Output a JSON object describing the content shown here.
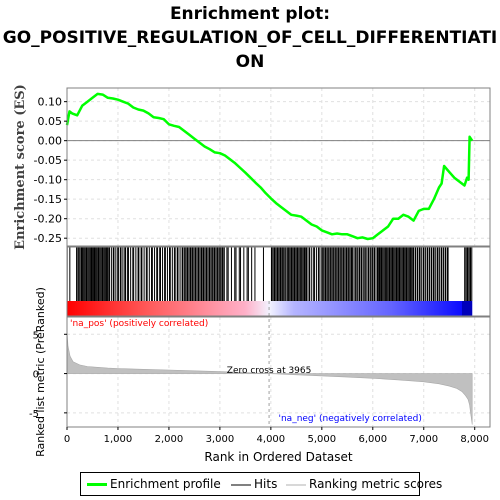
{
  "chart_data": {
    "type": "line",
    "title_lines": [
      "Enrichment plot:",
      "GO_POSITIVE_REGULATION_OF_CELL_DIFFERENTIATI",
      "ON"
    ],
    "ylabel_top": "Enrichment score (ES)",
    "ylabel_bottom": "Ranked list metric (PreRanked)",
    "xlabel": "Rank in Ordered Dataset",
    "x_ticks": [
      "0",
      "1,000",
      "2,000",
      "3,000",
      "4,000",
      "5,000",
      "6,000",
      "7,000",
      "8,000"
    ],
    "x_tick_values": [
      0,
      1000,
      2000,
      3000,
      4000,
      5000,
      6000,
      7000,
      8000
    ],
    "xlim": [
      0,
      8300
    ],
    "es_yticks": [
      "0.10",
      "0.05",
      "0.00",
      "-0.05",
      "-0.10",
      "-0.15",
      "-0.20",
      "-0.25"
    ],
    "es_ytick_values": [
      0.1,
      0.05,
      0.0,
      -0.05,
      -0.1,
      -0.15,
      -0.2,
      -0.25
    ],
    "es_ylim": [
      -0.27,
      0.135
    ],
    "metric_yticks": [
      "5",
      "0",
      "-5"
    ],
    "metric_ytick_values": [
      5,
      0,
      -5
    ],
    "metric_ylim": [
      -6.8,
      7.2
    ],
    "enrichment_profile": {
      "name": "Enrichment profile",
      "color": "#00ff00",
      "x": [
        0,
        50,
        100,
        200,
        300,
        400,
        500,
        600,
        700,
        800,
        900,
        1000,
        1100,
        1200,
        1300,
        1400,
        1500,
        1600,
        1700,
        1800,
        1900,
        2000,
        2100,
        2200,
        2300,
        2400,
        2500,
        2600,
        2700,
        2800,
        2900,
        3000,
        3100,
        3200,
        3300,
        3400,
        3500,
        3600,
        3700,
        3800,
        3900,
        4000,
        4100,
        4200,
        4300,
        4400,
        4500,
        4600,
        4700,
        4800,
        4900,
        5000,
        5100,
        5200,
        5300,
        5400,
        5500,
        5600,
        5700,
        5800,
        5900,
        6000,
        6100,
        6200,
        6300,
        6400,
        6500,
        6600,
        6700,
        6800,
        6900,
        7000,
        7100,
        7200,
        7300,
        7350,
        7400,
        7500,
        7600,
        7700,
        7800,
        7850,
        7880,
        7900,
        7950
      ],
      "y": [
        0.04,
        0.075,
        0.07,
        0.065,
        0.09,
        0.1,
        0.11,
        0.12,
        0.118,
        0.11,
        0.108,
        0.105,
        0.1,
        0.095,
        0.085,
        0.08,
        0.077,
        0.07,
        0.06,
        0.058,
        0.055,
        0.042,
        0.038,
        0.035,
        0.025,
        0.015,
        0.005,
        -0.005,
        -0.015,
        -0.022,
        -0.03,
        -0.032,
        -0.038,
        -0.048,
        -0.058,
        -0.07,
        -0.082,
        -0.095,
        -0.108,
        -0.12,
        -0.135,
        -0.148,
        -0.16,
        -0.17,
        -0.18,
        -0.19,
        -0.192,
        -0.195,
        -0.205,
        -0.215,
        -0.22,
        -0.23,
        -0.235,
        -0.24,
        -0.238,
        -0.24,
        -0.24,
        -0.245,
        -0.25,
        -0.248,
        -0.252,
        -0.25,
        -0.24,
        -0.23,
        -0.22,
        -0.2,
        -0.2,
        -0.19,
        -0.195,
        -0.205,
        -0.18,
        -0.175,
        -0.175,
        -0.15,
        -0.12,
        -0.11,
        -0.065,
        -0.08,
        -0.095,
        -0.105,
        -0.115,
        -0.095,
        -0.1,
        0.01,
        0.0
      ]
    },
    "hits_label": "Hits",
    "hits_color": "#000000",
    "hits": [
      {
        "from": 0,
        "to": 80,
        "count": 2
      },
      {
        "from": 180,
        "to": 300,
        "count": 6
      },
      {
        "from": 300,
        "to": 800,
        "count": 30
      },
      {
        "from": 800,
        "to": 1200,
        "count": 14
      },
      {
        "from": 1200,
        "to": 1800,
        "count": 18
      },
      {
        "from": 1800,
        "to": 2300,
        "count": 16
      },
      {
        "from": 2300,
        "to": 3100,
        "count": 40
      },
      {
        "from": 3100,
        "to": 3700,
        "count": 12
      },
      {
        "from": 3850,
        "to": 3900,
        "count": 1
      },
      {
        "from": 4000,
        "to": 4300,
        "count": 16
      },
      {
        "from": 4300,
        "to": 4700,
        "count": 22
      },
      {
        "from": 4700,
        "to": 5000,
        "count": 10
      },
      {
        "from": 5000,
        "to": 5600,
        "count": 30
      },
      {
        "from": 5600,
        "to": 6100,
        "count": 22
      },
      {
        "from": 6100,
        "to": 6800,
        "count": 40
      },
      {
        "from": 6800,
        "to": 7500,
        "count": 28
      },
      {
        "from": 7800,
        "to": 7950,
        "count": 8
      }
    ],
    "ranking_metric": {
      "name": "Ranking metric scores",
      "color": "#c0c0c0",
      "x": [
        0,
        20,
        60,
        120,
        250,
        400,
        600,
        800,
        1000,
        1500,
        2000,
        2500,
        3000,
        3500,
        3965,
        4500,
        5000,
        5500,
        6000,
        6500,
        7000,
        7300,
        7500,
        7650,
        7750,
        7820,
        7870,
        7900,
        7920,
        7940,
        7950
      ],
      "y": [
        5.5,
        3.5,
        2.2,
        1.5,
        1.1,
        0.9,
        0.8,
        0.7,
        0.65,
        0.55,
        0.45,
        0.35,
        0.25,
        0.12,
        0.0,
        -0.15,
        -0.3,
        -0.45,
        -0.6,
        -0.8,
        -1.05,
        -1.3,
        -1.6,
        -1.9,
        -2.3,
        -2.8,
        -3.3,
        -4.0,
        -5.0,
        -6.0,
        -6.5
      ]
    },
    "zero_cross_label": "Zero cross at 3965",
    "zero_cross_x": 3965,
    "pos_label": "'na_pos' (positively correlated)",
    "neg_label": "'na_neg' (negatively correlated)",
    "pos_color": "#ff0000",
    "neg_color": "#0000ff",
    "legend": {
      "enrichment": "Enrichment profile",
      "hits": "Hits",
      "ranking": "Ranking metric scores"
    }
  }
}
